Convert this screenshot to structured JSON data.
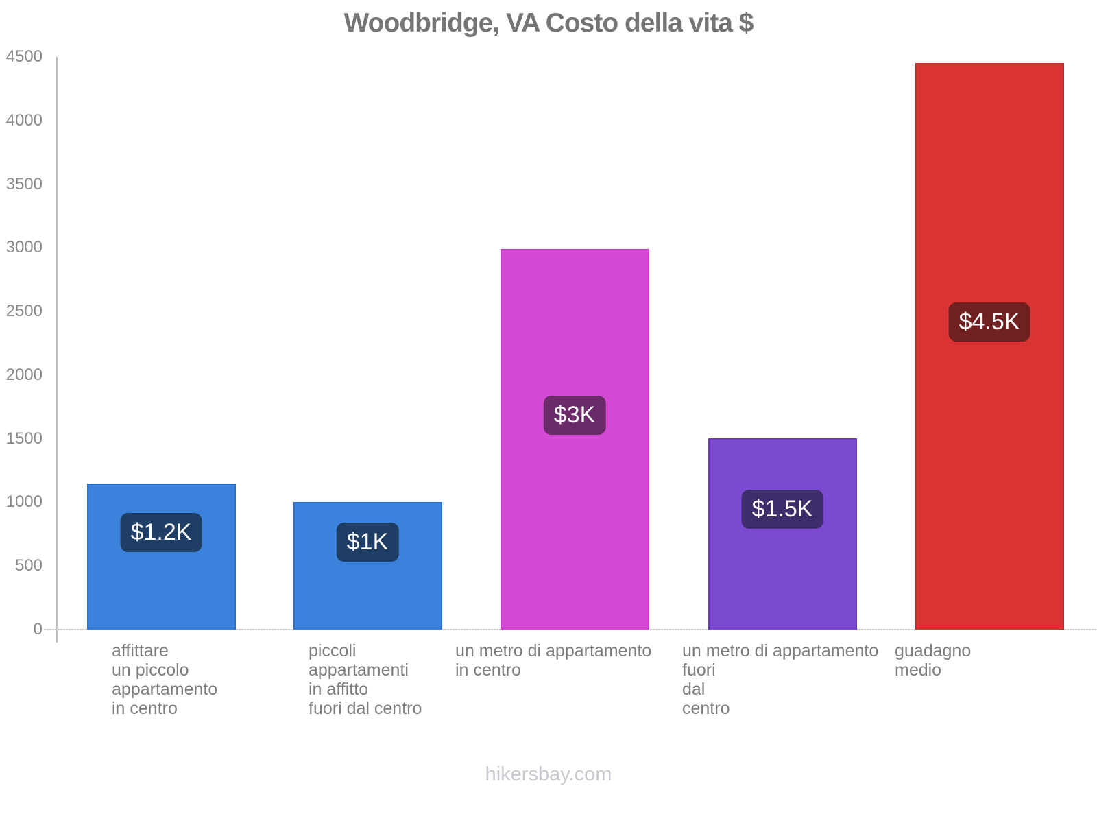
{
  "page": {
    "watermark": "hikersbay.com"
  },
  "chart_data": {
    "type": "bar",
    "title": "Woodbridge, VA Costo della vita $",
    "xlabel": "",
    "ylabel": "",
    "ylim": [
      0,
      4500
    ],
    "yticks": [
      0,
      500,
      1000,
      1500,
      2000,
      2500,
      3000,
      3500,
      4000,
      4500
    ],
    "grid": "off",
    "legend": "none",
    "categories": [
      "affittare un piccolo appartamento in centro",
      "piccoli appartamenti in affitto fuori dal centro",
      "un metro di appartamento in centro",
      "un metro di appartamento fuori dal centro",
      "guadagno medio"
    ],
    "category_lines": [
      [
        "affittare",
        "un piccolo",
        "appartamento",
        "in centro"
      ],
      [
        "piccoli",
        "appartamenti",
        "in affitto",
        "fuori dal centro"
      ],
      [
        "un metro di appartamento",
        "in centro"
      ],
      [
        "un metro di appartamento",
        "fuori",
        "dal",
        "centro"
      ],
      [
        "guadagno",
        "medio"
      ]
    ],
    "values": [
      1150,
      1000,
      2990,
      1505,
      4450
    ],
    "value_labels": [
      "$1.2K",
      "$1K",
      "$3K",
      "$1.5K",
      "$4.5K"
    ],
    "bar_colors": [
      "#3b82dc",
      "#3b82dc",
      "#d44ad4",
      "#7c4ad1",
      "#d93433"
    ],
    "bar_border_colors": [
      "#2f6fc7",
      "#2f6fc7",
      "#c13ec3",
      "#6a3bbd",
      "#c22b2a"
    ],
    "badge_colors": [
      "#1f3e66",
      "#1f3e66",
      "#6b2b6b",
      "#3e2d6b",
      "#6f201f"
    ],
    "axis_color": "#bdbdbd",
    "tick_label_color": "#8a8a8a",
    "title_color": "#757575"
  }
}
